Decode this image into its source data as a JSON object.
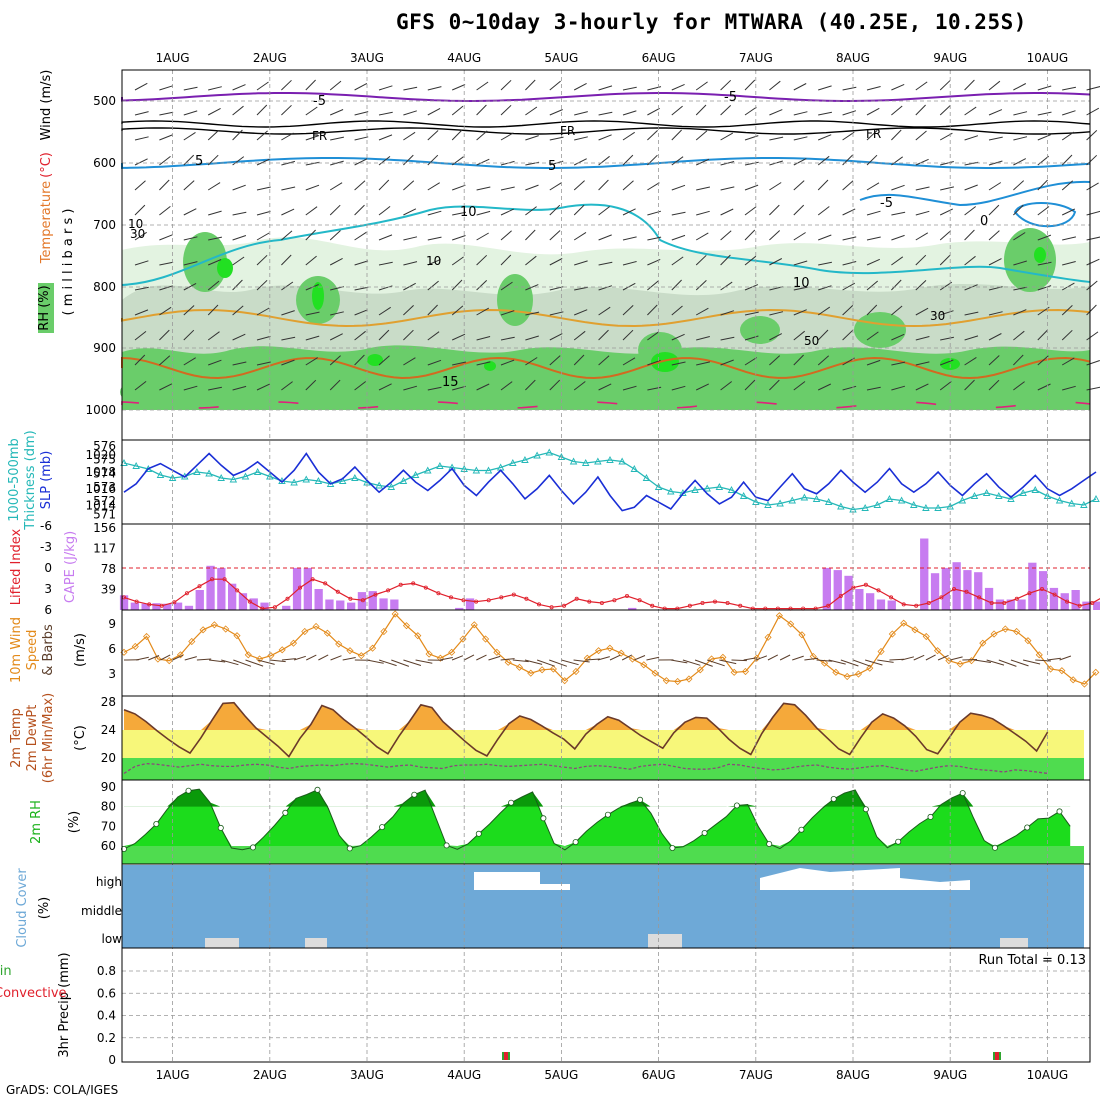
{
  "title": "GFS 0~10day 3-hourly for MTWARA (40.25E, 10.25S)",
  "footer": "GrADS: COLA/IGES",
  "colors": {
    "rh_light": "#e3f3e1",
    "rh_mid": "#c9dcc8",
    "rh_green": "#6acd6a",
    "rh_bright": "#22e022",
    "slp": "#1a2fd6",
    "thickness": "#25b8b8",
    "cape": "#c77cf0",
    "lifted_index": "#e0202c",
    "wind10": "#e38a1a",
    "barb10": "#5a3d2a",
    "temp_band": "#f5a93a",
    "temp_fill": "#f7f77a",
    "dew_fill": "#4fdc4f",
    "rh2_dark": "#0a9a0a",
    "rh2_mid": "#1cdc1c",
    "rh2_low": "#4fdc4f",
    "cloud": "#6ea9d7",
    "cloud_white": "#ffffff",
    "cloud_low": "#dcdcdc"
  },
  "dates": [
    "1AUG",
    "2AUG",
    "3AUG",
    "4AUG",
    "5AUG",
    "6AUG",
    "7AUG",
    "8AUG",
    "9AUG",
    "10AUG"
  ],
  "panels": {
    "upper": {
      "ylabel_rh": "RH (%)",
      "ylabel_temp": "Temperature",
      "ylabel_tunit": "(°C)",
      "ylabel_wind": "Wind (m/s)",
      "ylabel_mb": "( m i l l i b a r s )",
      "pressure_ticks": [
        "500",
        "600",
        "700",
        "800",
        "900",
        "1000"
      ],
      "contour_labels": {
        "t_minus5": "-5",
        "fr": "FR",
        "t5": "5",
        "t10": "10",
        "t0": "0",
        "t15": "15",
        "rh10": "10",
        "rh30": "30",
        "rh50": "50"
      }
    },
    "slp_panel": {
      "ylabel_thick": "1000-500mb",
      "ylabel_thick2": "Thickness (dm)",
      "ylabel_slp": "SLP (mb)",
      "thick_ticks": [
        "576",
        "575",
        "574",
        "573",
        "572",
        "571"
      ],
      "slp_ticks": [
        "1020",
        "1018",
        "1016",
        "1014"
      ]
    },
    "cape_panel": {
      "ylabel_li": "Lifted Index",
      "ylabel_cape": "CAPE (J/kg)",
      "li_ticks": [
        "-6",
        "-3",
        "0",
        "3",
        "6"
      ],
      "cape_ticks": [
        "156",
        "117",
        "78",
        "39"
      ]
    },
    "wind_panel": {
      "ylabel1": "10m Wind",
      "ylabel2": "Speed",
      "ylabel3": "& Barbs",
      "ylabel_unit": "(m/s)",
      "ticks": [
        "9",
        "6",
        "3"
      ]
    },
    "temp_panel": {
      "ylabel1": "2m Temp",
      "ylabel2": "2m DewPt",
      "ylabel3": "(6hr Min/Max)",
      "ylabel_unit": "(°C)",
      "ticks": [
        "28",
        "24",
        "20"
      ]
    },
    "rh_panel": {
      "ylabel": "2m RH",
      "unit": "(%)",
      "ticks": [
        "90",
        "80",
        "70",
        "60"
      ]
    },
    "cloud_panel": {
      "ylabel": "Cloud Cover",
      "unit": "(%)",
      "levels": [
        "high",
        "middle",
        "low"
      ]
    },
    "precip_panel": {
      "ylabel1": "Total / Rain",
      "ylabel2": "Convective",
      "ylabel3": "3hr Precip (mm)",
      "run_total": "Run Total = 0.13",
      "ticks": [
        "0.8",
        "0.6",
        "0.4",
        "0.2",
        "0"
      ]
    }
  },
  "chart_data": [
    {
      "type": "line",
      "title": "SLP (mb) and 1000-500mb Thickness (dm)",
      "x": "3-hourly steps from 31 Jul 12Z to 10 Aug 12Z (81 steps)",
      "series": [
        {
          "name": "SLP (mb)",
          "axis": "right",
          "ylim": [
            1012.5,
            1021.5
          ],
          "values": [
            1015.6,
            1016.6,
            1018.4,
            1019.0,
            1018.2,
            1017.4,
            1018.8,
            1020.2,
            1018.8,
            1017.6,
            1018.2,
            1019.2,
            1018.0,
            1016.8,
            1018.2,
            1020.2,
            1018.0,
            1016.6,
            1017.2,
            1018.6,
            1017.0,
            1015.6,
            1016.8,
            1018.2,
            1016.8,
            1015.8,
            1017.0,
            1018.4,
            1016.4,
            1015.2,
            1016.8,
            1018.2,
            1016.6,
            1014.8,
            1016.0,
            1017.6,
            1015.8,
            1014.2,
            1015.6,
            1017.4,
            1015.2,
            1013.4,
            1013.8,
            1015.2,
            1014.4,
            1013.6,
            1015.4,
            1017.0,
            1015.4,
            1014.2,
            1015.0,
            1016.8,
            1015.0,
            1014.6,
            1016.2,
            1017.8,
            1016.0,
            1015.4,
            1016.6,
            1018.2,
            1016.8,
            1015.6,
            1016.8,
            1018.4,
            1016.6,
            1015.6,
            1016.6,
            1018.0,
            1016.4,
            1015.2,
            1016.6,
            1017.8,
            1016.2,
            1015.0,
            1016.2,
            1017.6,
            1016.0,
            1015.2,
            1016.0,
            1017.0,
            1018.0
          ]
        },
        {
          "name": "1000-500mb Thickness (dm)",
          "axis": "left",
          "ylim": [
            570.8,
            576.3
          ],
          "values": [
            574.8,
            574.6,
            574.4,
            574.0,
            573.8,
            573.9,
            574.2,
            574.1,
            573.8,
            573.7,
            573.9,
            574.2,
            573.9,
            573.6,
            573.5,
            573.7,
            573.6,
            573.4,
            573.6,
            573.8,
            573.5,
            573.3,
            573.2,
            573.6,
            574.0,
            574.3,
            574.6,
            574.5,
            574.4,
            574.3,
            574.3,
            574.5,
            574.8,
            575.0,
            575.3,
            575.5,
            575.2,
            574.9,
            574.8,
            574.9,
            575.0,
            574.9,
            574.4,
            573.8,
            573.2,
            572.9,
            572.8,
            573.0,
            573.1,
            573.2,
            573.0,
            572.6,
            572.2,
            572.0,
            572.1,
            572.3,
            572.5,
            572.4,
            572.2,
            571.9,
            571.7,
            571.8,
            572.0,
            572.4,
            572.3,
            572.0,
            571.8,
            571.8,
            571.9,
            572.3,
            572.6,
            572.8,
            572.6,
            572.4,
            572.8,
            573.0,
            572.6,
            572.3,
            572.1,
            572.0,
            572.4
          ]
        }
      ]
    },
    {
      "type": "bar",
      "title": "CAPE (J/kg) and Lifted Index",
      "cape_ylim": [
        0,
        156
      ],
      "li_ylim": [
        6,
        -6
      ],
      "cape_values": [
        28,
        14,
        12,
        13,
        12,
        14,
        8,
        38,
        84,
        80,
        50,
        32,
        22,
        14,
        0,
        8,
        80,
        80,
        40,
        20,
        18,
        14,
        34,
        36,
        22,
        20,
        0,
        0,
        0,
        0,
        0,
        4,
        22,
        0,
        0,
        0,
        0,
        0,
        0,
        0,
        0,
        0,
        0,
        0,
        0,
        0,
        0,
        4,
        0,
        0,
        0,
        0,
        0,
        0,
        0,
        0,
        0,
        0,
        0,
        0,
        0,
        0,
        0,
        0,
        0,
        80,
        76,
        65,
        40,
        32,
        20,
        18,
        0,
        0,
        136,
        70,
        80,
        91,
        76,
        72,
        42,
        20,
        20,
        20,
        90,
        74,
        42,
        32,
        38,
        16,
        16,
        10,
        9,
        24
      ],
      "li_values": [
        4.2,
        4.8,
        5.2,
        5.4,
        4.9,
        3.6,
        2.6,
        1.6,
        1.6,
        3.2,
        4.8,
        5.8,
        5.6,
        4.4,
        2.8,
        1.6,
        2.2,
        3.4,
        4.4,
        4.6,
        3.8,
        3.2,
        2.4,
        2.2,
        2.8,
        3.6,
        4.2,
        4.6,
        4.8,
        4.6,
        4.2,
        3.8,
        4.4,
        5.2,
        5.6,
        5.4,
        4.4,
        4.8,
        5.0,
        4.6,
        4.0,
        4.6,
        5.4,
        5.8,
        5.8,
        5.4,
        5.0,
        4.8,
        5.0,
        5.4,
        5.8,
        5.8,
        5.8,
        5.8,
        5.8,
        5.8,
        5.4,
        4.0,
        2.8,
        2.4,
        3.2,
        4.2,
        5.2,
        5.4,
        5.0,
        4.2,
        3.0,
        3.4,
        4.2,
        5.0,
        5.0,
        4.4,
        3.6,
        3.0,
        3.8,
        4.8,
        5.4,
        5.0,
        4.0,
        3.8
      ]
    },
    {
      "type": "line",
      "title": "10m Wind Speed (m/s)",
      "ylim": [
        1.5,
        10.2
      ],
      "values": [
        5.6,
        6.3,
        7.5,
        4.8,
        4.6,
        5.3,
        6.9,
        8.3,
        8.9,
        8.4,
        7.6,
        5.3,
        4.8,
        5.2,
        5.9,
        6.7,
        8.1,
        8.7,
        7.9,
        6.6,
        5.8,
        5.2,
        6.1,
        8.1,
        10.2,
        8.8,
        7.6,
        5.4,
        4.9,
        5.6,
        7.2,
        8.9,
        7.2,
        5.6,
        4.4,
        3.8,
        3.1,
        3.5,
        3.6,
        2.2,
        3.3,
        4.9,
        5.8,
        6.1,
        5.5,
        4.8,
        4.1,
        3.1,
        2.2,
        2.1,
        2.4,
        3.5,
        4.8,
        5.0,
        3.2,
        3.3,
        4.9,
        7.4,
        10.0,
        9.0,
        7.7,
        5.1,
        4.3,
        3.2,
        2.7,
        3.0,
        3.7,
        5.7,
        7.8,
        9.1,
        8.3,
        7.5,
        5.8,
        4.6,
        4.2,
        4.6,
        6.7,
        7.8,
        8.4,
        8.1,
        7.0,
        5.3,
        3.6,
        3.4,
        2.3,
        1.8,
        3.2
      ]
    },
    {
      "type": "area",
      "title": "2m Temp and 2m DewPt (°C)",
      "ylim": [
        17.2,
        28.8
      ],
      "temp_values": [
        26.9,
        26.3,
        25.2,
        23.9,
        22.7,
        21.6,
        20.7,
        22.9,
        25.4,
        27.8,
        27.9,
        26.0,
        24.3,
        23.0,
        21.7,
        20.2,
        22.8,
        24.8,
        27.5,
        26.9,
        25.5,
        24.3,
        23.0,
        21.6,
        20.6,
        23.1,
        25.3,
        27.6,
        27.2,
        25.2,
        23.8,
        22.4,
        21.1,
        20.3,
        22.7,
        24.9,
        26.0,
        25.5,
        24.6,
        23.6,
        22.7,
        21.3,
        23.4,
        24.8,
        25.9,
        25.4,
        24.3,
        23.2,
        22.3,
        21.4,
        23.6,
        25.1,
        25.8,
        25.7,
        24.3,
        22.7,
        21.4,
        20.5,
        23.5,
        25.8,
        27.8,
        27.6,
        26.1,
        24.3,
        22.8,
        21.3,
        20.5,
        22.9,
        25.1,
        26.3,
        25.7,
        24.6,
        23.1,
        21.2,
        20.6,
        22.8,
        25.1,
        26.4,
        26.1,
        25.6,
        24.6,
        23.5,
        22.4,
        21.0,
        23.7
      ],
      "dew_values": [
        17.8,
        18.8,
        19.2,
        19.1,
        18.9,
        18.7,
        18.9,
        19.1,
        18.9,
        18.8,
        18.8,
        19.0,
        19.1,
        19.0,
        18.7,
        18.5,
        18.8,
        18.9,
        19.0,
        18.9,
        19.1,
        19.2,
        19.1,
        18.9,
        18.7,
        18.9,
        19.0,
        18.7,
        18.6,
        18.5,
        18.9,
        19.0,
        19.0,
        19.1,
        18.9,
        18.8,
        18.9,
        19.0,
        19.1,
        18.9,
        18.7,
        18.5,
        18.8,
        18.9,
        18.8,
        18.6,
        18.4,
        18.8,
        19.0,
        19.1,
        18.8,
        18.5,
        18.4,
        18.4,
        18.6,
        19.1,
        19.0,
        18.7,
        18.5,
        18.3,
        18.4,
        18.7,
        18.9,
        19.0,
        18.7,
        18.5,
        18.4,
        18.6,
        18.8,
        18.9,
        18.6,
        18.3,
        18.1,
        18.4,
        18.7,
        18.9,
        18.8,
        18.5,
        18.3,
        18.2,
        18.0,
        18.3,
        18.2,
        18.0,
        17.8
      ]
    },
    {
      "type": "area",
      "title": "2m RH (%)",
      "ylim": [
        54,
        92
      ],
      "values": [
        58.5,
        61.2,
        65.9,
        71.2,
        78.5,
        84.9,
        88.1,
        88.9,
        82.1,
        69.2,
        59.0,
        58.1,
        59.3,
        64.7,
        70.4,
        76.9,
        84.2,
        86.2,
        88.6,
        79.1,
        65.5,
        58.8,
        60.2,
        64.6,
        69.6,
        74.8,
        81.8,
        86.1,
        88.4,
        74.4,
        60.3,
        58.3,
        61.1,
        66.2,
        71.2,
        76.8,
        82.0,
        84.9,
        87.5,
        74.1,
        61.3,
        58.0,
        62.0,
        67.5,
        72.0,
        75.9,
        79.2,
        81.6,
        83.5,
        76.7,
        66.6,
        59.0,
        59.6,
        62.7,
        66.6,
        70.8,
        74.9,
        80.6,
        81.1,
        69.8,
        61.0,
        58.7,
        62.6,
        68.3,
        74.3,
        79.4,
        83.9,
        86.9,
        88.5,
        78.7,
        64.8,
        59.1,
        62.2,
        67.1,
        71.4,
        74.8,
        81.1,
        84.5,
        86.9,
        74.3,
        62.8,
        59.1,
        62.4,
        65.4,
        69.4,
        73.8,
        74.2,
        77.6,
        70.0
      ]
    },
    {
      "type": "bar",
      "title": "3hr Precip (mm)",
      "ylim": [
        0,
        0.95
      ],
      "events": [
        {
          "date": "4AUG",
          "value": 0.06
        },
        {
          "date": "9AUG",
          "value": 0.06
        }
      ]
    }
  ]
}
